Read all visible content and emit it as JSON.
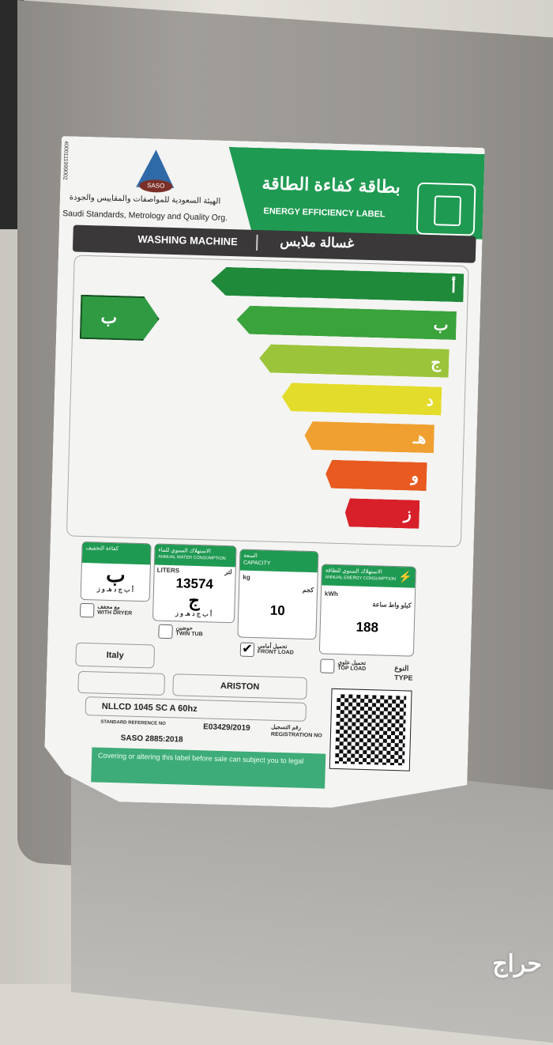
{
  "label": {
    "org_logo_text": "SASO",
    "org_ar": "الهيئة السعودية للمواصفات والمقاييس والجودة",
    "org_en": "Saudi Standards, Metrology and Quality Org.",
    "serial": "4000111999002",
    "title_ar": "بطاقة كفاءة الطاقة",
    "title_en": "ENERGY EFFICIENCY LABEL",
    "product_en": "WASHING MACHINE",
    "product_ar": "غسالة ملابس",
    "scale": [
      {
        "grade": "أ",
        "color": "#1e8a3a"
      },
      {
        "grade": "ب",
        "color": "#3aa33c"
      },
      {
        "grade": "ج",
        "color": "#9bc43a"
      },
      {
        "grade": "د",
        "color": "#e3dc2a"
      },
      {
        "grade": "هـ",
        "color": "#f0a030"
      },
      {
        "grade": "و",
        "color": "#e85a20"
      },
      {
        "grade": "ز",
        "color": "#d8202a"
      }
    ],
    "rating": "ب",
    "spin_box": {
      "header": "كفاءة التجفيف",
      "grade": "ب",
      "scale": "أ ب ج د هـ و ز"
    },
    "water_box": {
      "header_ar": "الاستهلاك السنوي للماء",
      "header_en": "ANNUAL WATER CONSUMPTION",
      "unit_en": "LITERS",
      "unit_ar": "لتر",
      "value": "13574",
      "grade": "ج",
      "scale": "أ ب ج د هـ و ز"
    },
    "capacity_box": {
      "header_ar": "السعة",
      "header_en": "CAPACITY",
      "unit_en": "kg",
      "unit_ar": "كجم",
      "value": "10"
    },
    "energy_box": {
      "header_ar": "الاستهلاك السنوي للطاقة",
      "header_en": "ANNUAL ENERGY CONSUMPTION",
      "unit_en": "kWh",
      "unit_ar": "كيلو واط ساعة",
      "value": "188"
    },
    "types": [
      {
        "ar": "مع مجفف",
        "en": "WITH DRYER",
        "checked": false
      },
      {
        "ar": "حوضين",
        "en": "TWIN TUB",
        "checked": false
      },
      {
        "ar": "تحميل أمامي",
        "en": "FRONT LOAD",
        "checked": true
      },
      {
        "ar": "تحميل علوي",
        "en": "TOP LOAD",
        "checked": false
      }
    ],
    "type_label_ar": "النوع",
    "type_label_en": "TYPE",
    "check_mark": "✔",
    "origin": "Italy",
    "brand": "ARISTON",
    "model": "NLLCD 1045 SC A 60hz",
    "standard_label": "STANDARD REFERENCE NO",
    "standard": "SASO 2885:2018",
    "registration": "E03429/2019",
    "registration_label_ar": "رقم التسجيل",
    "registration_label_en": "REGISTRATION NO",
    "warning": "Covering or altering this label before sale can subject you to legal"
  },
  "watermark": "حراج"
}
